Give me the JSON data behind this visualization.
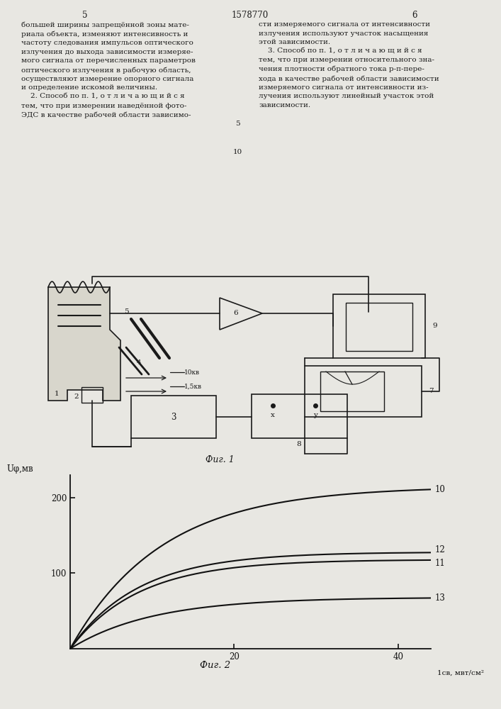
{
  "bg_color": "#e8e7e2",
  "lc": "#1a1a1a",
  "header_num": "1578770",
  "page_left": "5",
  "page_right": "6",
  "fig1_caption": "Фиг. 1",
  "fig2_caption": "Фиг. 2",
  "ylabel": "Uφ,мв",
  "xlabel": "1cв, мвт/cм²",
  "ytick_vals": [
    100,
    200
  ],
  "xtick_vals": [
    20,
    40
  ],
  "xlim": [
    0,
    44
  ],
  "ylim": [
    0,
    230
  ],
  "curves": [
    {
      "A": 215,
      "k": 0.09,
      "label": "10"
    },
    {
      "A": 128,
      "k": 0.12,
      "label": "12"
    },
    {
      "A": 118,
      "k": 0.12,
      "label": "11"
    },
    {
      "A": 68,
      "k": 0.1,
      "label": "13"
    }
  ],
  "left_col": "большей ширины запрещённой зоны мате-\nриала объекта, изменяют интенсивность и\nчастоту следования импульсов оптического\nизлучения до выхода зависимости измеряе-\nмого сигнала от перечисленных параметров\nоптического излучения в рабочую область,\nосуществляют измерение опорного сигнала\nи определение искомой величины.\n    2. Способ по п. 1, о т л и ч а ю щ и й с я\nтем, что при измерении наведённой фото-\nЭДС в качестве рабочей области зависимо-",
  "right_col": "сти измеряемого сигнала от интенсивности\nизлучения используют участок насыщения\nэтой зависимости.\n    3. Способ по п. 1, о т л и ч а ю щ и й с я\nтем, что при измерении относительного зна-\nчения плотности обратного тока р-п-пере-\nхода в качестве рабочей области зависимости\nизмеряемого сигнала от интенсивности из-\nлучения используют линейный участок этой\nзависимости."
}
